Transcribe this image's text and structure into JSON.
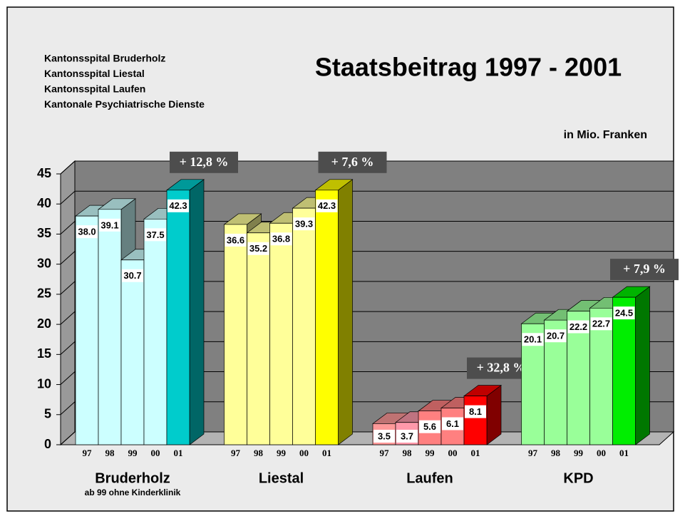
{
  "chart_data": {
    "type": "bar3d",
    "title": "Staatsbeitrag 1997 - 2001",
    "subtitle": "in Mio. Franken",
    "legend_lines": [
      "Kantonsspital Bruderholz",
      "Kantonsspital Liestal",
      "Kantonsspital Laufen",
      "Kantonale Psychiatrische Dienste"
    ],
    "categories": [
      "97",
      "98",
      "99",
      "00",
      "01"
    ],
    "ylim": [
      0,
      45
    ],
    "yticks": [
      0,
      5,
      10,
      15,
      20,
      25,
      30,
      35,
      40,
      45
    ],
    "grid": true,
    "series": [
      {
        "name": "Bruderholz",
        "note": "ab 99 ohne Kinderklinik",
        "annotation": "+ 12,8 %",
        "colors": [
          "#ccffff",
          "#ccffff",
          "#ccffff",
          "#ccffff",
          "#00cccc"
        ],
        "values": [
          38,
          39.1,
          30.7,
          37.5,
          42.3
        ],
        "value_labels": [
          "38.0",
          "39.1",
          "30.7",
          "37.5",
          "42.3"
        ]
      },
      {
        "name": "Liestal",
        "annotation": "+ 7,6 %",
        "colors": [
          "#ffff99",
          "#ffff99",
          "#ffff99",
          "#ffff99",
          "#ffff00"
        ],
        "values": [
          36.6,
          35.2,
          36.8,
          39.3,
          42.3
        ],
        "value_labels": [
          "36.6",
          "35.2",
          "36.8",
          "39.3",
          "42.3"
        ]
      },
      {
        "name": "Laufen",
        "annotation": "+ 32,8 %",
        "colors": [
          "#ff9999",
          "#ff99aa",
          "#ff8080",
          "#ff8080",
          "#ff0000"
        ],
        "values": [
          3.5,
          3.7,
          5.6,
          6.1,
          8.1
        ],
        "value_labels": [
          "3.5",
          "3.7",
          "5.6",
          "6.1",
          "8.1"
        ]
      },
      {
        "name": "KPD",
        "annotation": "+ 7,9 %",
        "colors": [
          "#99ff99",
          "#99ff99",
          "#99ff99",
          "#99ff99",
          "#00ee00"
        ],
        "values": [
          20.1,
          20.7,
          22.2,
          22.7,
          24.5
        ],
        "value_labels": [
          "20.1",
          "20.7",
          "22.2",
          "22.7",
          "24.5"
        ]
      }
    ]
  }
}
